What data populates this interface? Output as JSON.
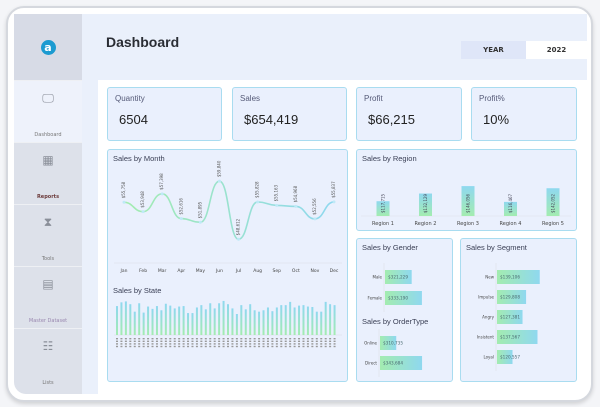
{
  "sidebar": {
    "logo": "a",
    "items": [
      {
        "label": "Dashboard",
        "icon": "presentation-board-icon"
      },
      {
        "label": "Reports",
        "icon": "report-calculator-icon"
      },
      {
        "label": "Tools",
        "icon": "tools-hourglass-icon"
      },
      {
        "label": "Master Dataset",
        "icon": "document-list-icon"
      },
      {
        "label": "Lists",
        "icon": "checklist-icon"
      }
    ]
  },
  "header": {
    "title": "Dashboard",
    "year_label": "YEAR",
    "year_value": "2022"
  },
  "kpis": [
    {
      "label": "Quantity",
      "value": "6504"
    },
    {
      "label": "Sales",
      "value": "$654,419"
    },
    {
      "label": "Profit",
      "value": "$66,215"
    },
    {
      "label": "Profit%",
      "value": "10%"
    }
  ],
  "colors": {
    "accent_blue": "#8fd8ef",
    "accent_green": "#a3ecb0",
    "card_border": "#a9dcf0",
    "logo": "#1c9bd1"
  },
  "chart_data": [
    {
      "type": "line",
      "title": "Sales by Month",
      "categories": [
        "Jan",
        "Feb",
        "Mar",
        "Apr",
        "May",
        "Jun",
        "Jul",
        "Aug",
        "Sep",
        "Oct",
        "Nov",
        "Dec"
      ],
      "values": [
        55758,
        53948,
        57398,
        52616,
        51895,
        59840,
        48612,
        55828,
        55163,
        54968,
        52556,
        55837
      ],
      "labels": [
        "$55,758",
        "$53,948",
        "$57,398",
        "$52,616",
        "$51,895",
        "$59,840",
        "$48,612",
        "$55,828",
        "$55,163",
        "$54,968",
        "$52,556",
        "$55,837"
      ]
    },
    {
      "type": "bar",
      "title": "Sales by State",
      "values": [
        62,
        70,
        72,
        66,
        50,
        68,
        48,
        61,
        56,
        62,
        53,
        67,
        63,
        57,
        61,
        62,
        47,
        47,
        59,
        64,
        55,
        68,
        57,
        68,
        73,
        66,
        57,
        45,
        64,
        55,
        66,
        53,
        50,
        53,
        59,
        51,
        59,
        64,
        64,
        71,
        59,
        63,
        64,
        61,
        60,
        50,
        50,
        71,
        66,
        64
      ]
    },
    {
      "type": "bar",
      "title": "Sales by Region",
      "categories": [
        "Region 1",
        "Region 2",
        "Region 3",
        "Region 4",
        "Region 5"
      ],
      "values": [
        117715,
        132129,
        146056,
        116467,
        142052
      ],
      "labels": [
        "$117,715",
        "$132,129",
        "$146,056",
        "$116,467",
        "$142,052"
      ]
    },
    {
      "type": "bar",
      "orientation": "horizontal",
      "title": "Sales by Gender",
      "categories": [
        "Male",
        "Female"
      ],
      "values": [
        321229,
        333190
      ],
      "labels": [
        "$321,229",
        "$333,190"
      ]
    },
    {
      "type": "bar",
      "orientation": "horizontal",
      "title": "Sales by OrderType",
      "categories": [
        "Online",
        "Direct"
      ],
      "values": [
        310735,
        343684
      ],
      "labels": [
        "$310,735",
        "$343,684"
      ]
    },
    {
      "type": "bar",
      "orientation": "horizontal",
      "title": "Sales by Segment",
      "categories": [
        "New",
        "Impulse",
        "Angry",
        "Insistent",
        "Loyal"
      ],
      "values": [
        139106,
        129808,
        127381,
        137567,
        120557
      ],
      "labels": [
        "$139,106",
        "$129,808",
        "$127,381",
        "$137,567",
        "$120,557"
      ]
    }
  ]
}
